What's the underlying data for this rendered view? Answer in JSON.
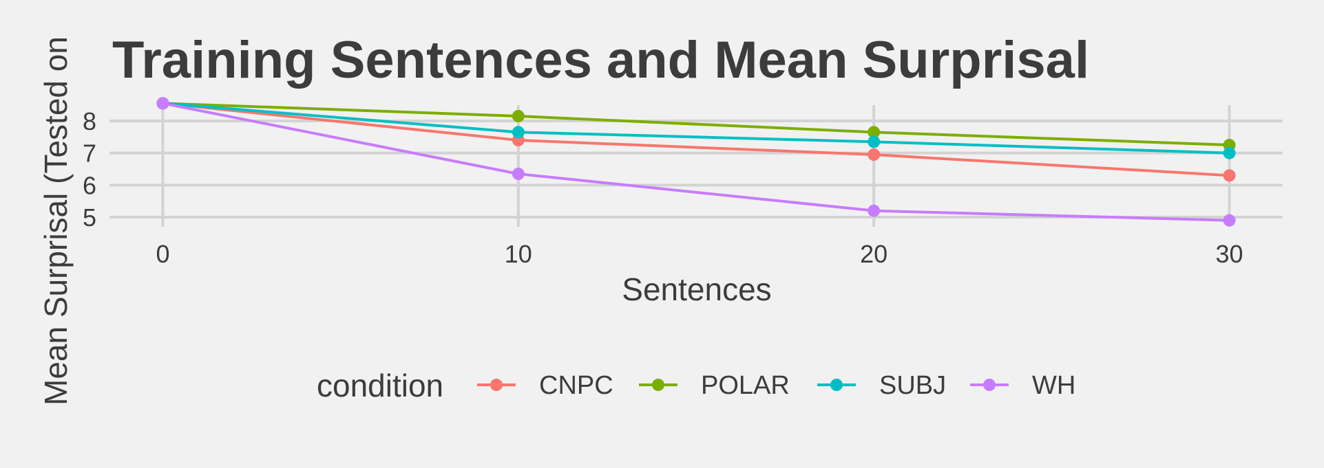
{
  "chart_data": {
    "type": "line",
    "title": "Training Sentences and Mean Surprisal",
    "xlabel": "Sentences",
    "ylabel": "Mean Surprisal (Tested on",
    "x": [
      0,
      10,
      20,
      30
    ],
    "xlim": [
      -1.5,
      31.5
    ],
    "ylim": [
      4.7,
      8.6
    ],
    "xticks": [
      0,
      10,
      20,
      30
    ],
    "yticks": [
      5,
      6,
      7,
      8
    ],
    "grid": true,
    "legend": {
      "title": "condition",
      "placement": "bottom"
    },
    "series": [
      {
        "name": "CNPC",
        "color": "#F8766D",
        "values": [
          8.55,
          7.4,
          6.95,
          6.3
        ]
      },
      {
        "name": "POLAR",
        "color": "#7CAE00",
        "values": [
          8.55,
          8.15,
          7.65,
          7.25
        ]
      },
      {
        "name": "SUBJ",
        "color": "#00BFC4",
        "values": [
          8.55,
          7.65,
          7.35,
          7.0
        ]
      },
      {
        "name": "WH",
        "color": "#C77CFF",
        "values": [
          8.55,
          6.35,
          5.2,
          4.9
        ]
      }
    ]
  }
}
